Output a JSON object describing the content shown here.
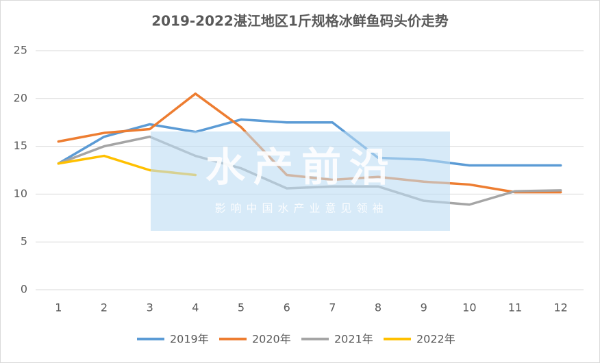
{
  "chart_data": {
    "type": "line",
    "title": "2019-2022湛江地区1斤规格冰鲜鱼码头价走势",
    "categories": [
      "1",
      "2",
      "3",
      "4",
      "5",
      "6",
      "7",
      "8",
      "9",
      "10",
      "11",
      "12"
    ],
    "series": [
      {
        "name": "2019年",
        "color": "#5b9bd5",
        "values": [
          13.2,
          16,
          17.3,
          16.5,
          17.8,
          17.5,
          17.5,
          13.8,
          13.6,
          13,
          13,
          13
        ]
      },
      {
        "name": "2020年",
        "color": "#ed7d31",
        "values": [
          15.5,
          16.4,
          16.8,
          20.5,
          17,
          12,
          11.5,
          11.8,
          11.3,
          11,
          10.2,
          10.2
        ]
      },
      {
        "name": "2021年",
        "color": "#a5a5a5",
        "values": [
          13.2,
          15,
          16,
          14,
          12.7,
          10.6,
          10.8,
          10.8,
          9.3,
          8.9,
          10.3,
          10.4
        ]
      },
      {
        "name": "2022年",
        "color": "#ffc000",
        "values": [
          13.2,
          14,
          12.5,
          12,
          null,
          null,
          null,
          null,
          null,
          null,
          null,
          null
        ]
      }
    ],
    "ylim": [
      0,
      25
    ],
    "yticks": [
      0,
      5,
      10,
      15,
      20,
      25
    ],
    "grid": true,
    "legend": "bottom",
    "watermark": {
      "title": "水产前沿",
      "subtitle": "影响中国水产业意见领袖"
    }
  }
}
